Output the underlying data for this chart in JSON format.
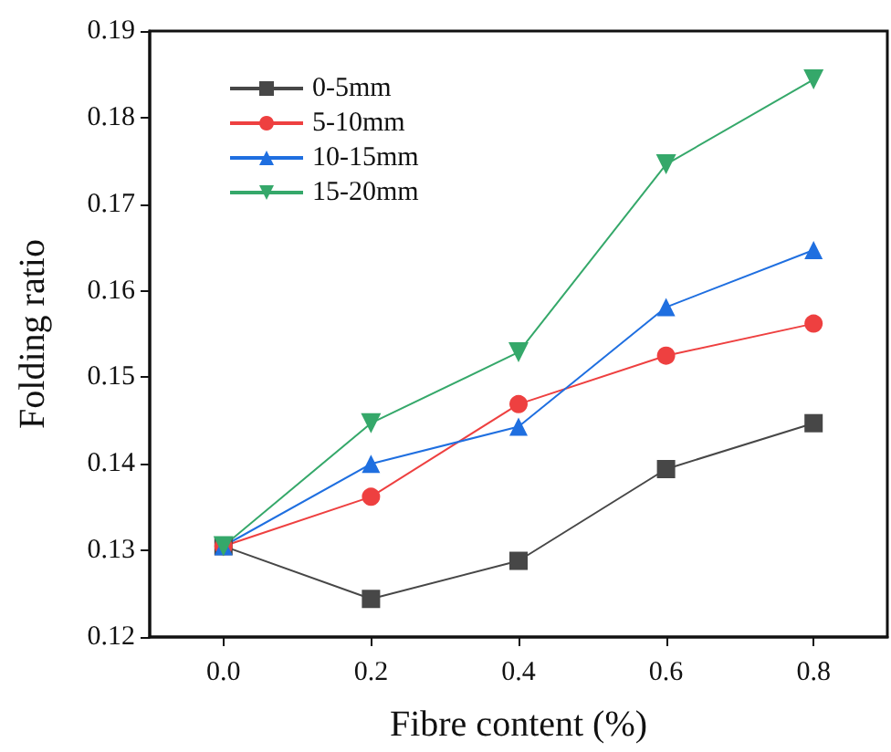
{
  "chart_data": {
    "type": "line",
    "xlabel": "Fibre content (%)",
    "ylabel": "Folding ratio",
    "x": [
      0.0,
      0.2,
      0.4,
      0.6,
      0.8
    ],
    "series": [
      {
        "name": "0-5mm",
        "color": "#474747",
        "marker": "square",
        "values": [
          0.1305,
          0.1244,
          0.1288,
          0.1394,
          0.1447
        ]
      },
      {
        "name": "5-10mm",
        "color": "#ee4040",
        "marker": "circle",
        "values": [
          0.1305,
          0.1362,
          0.1469,
          0.1525,
          0.1562
        ]
      },
      {
        "name": "10-15mm",
        "color": "#1f6fe0",
        "marker": "triangle",
        "values": [
          0.1305,
          0.14,
          0.1443,
          0.1581,
          0.1647
        ]
      },
      {
        "name": "15-20mm",
        "color": "#35a86a",
        "marker": "triangle-down",
        "values": [
          0.1305,
          0.1447,
          0.1529,
          0.1746,
          0.1844
        ]
      }
    ],
    "xlim": [
      -0.1,
      0.9
    ],
    "xticks": [
      {
        "value": 0,
        "label": "0.0"
      },
      0.2,
      0.4,
      0.6,
      0.8
    ],
    "ylim": [
      0.12,
      0.19
    ],
    "yticks": [
      0.12,
      0.13,
      0.14,
      0.15,
      0.16,
      0.17,
      0.18,
      0.19
    ],
    "grid": false,
    "legend": "top left",
    "line_style": "solid"
  }
}
